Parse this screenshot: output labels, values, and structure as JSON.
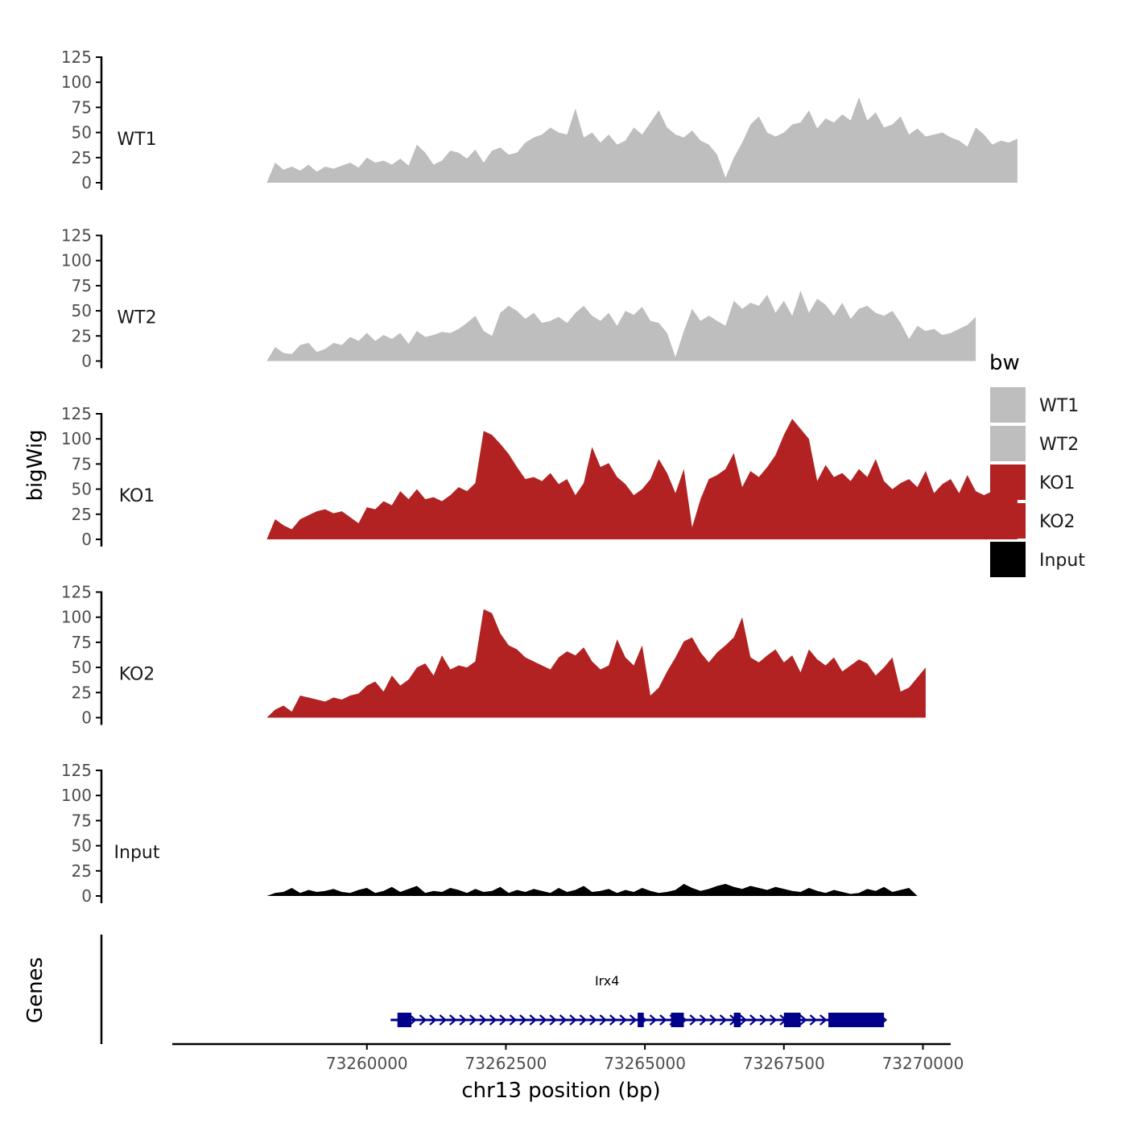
{
  "chart_data": {
    "type": "area",
    "xlabel": "chr13 position (bp)",
    "ylabel": "bigWig",
    "genes_label": "Genes",
    "legend": {
      "title": "bw",
      "position": "right",
      "entries": [
        {
          "name": "WT1",
          "color": "#BEBEBE"
        },
        {
          "name": "WT2",
          "color": "#BEBEBE"
        },
        {
          "name": "KO1",
          "color": "#B22222"
        },
        {
          "name": "KO2",
          "color": "#B22222"
        },
        {
          "name": "Input",
          "color": "#000000"
        }
      ]
    },
    "x_range": [
      73256500,
      73270500
    ],
    "x_ticks": [
      73260000,
      73262500,
      73265000,
      73267500,
      73270000
    ],
    "x_tick_labels": [
      "73260000",
      "73262500",
      "73265000",
      "73267500",
      "73270000"
    ],
    "ylim": [
      0,
      125
    ],
    "y_ticks": [
      0,
      25,
      50,
      75,
      100,
      125
    ],
    "y_tick_labels": [
      "0",
      "25",
      "50",
      "75",
      "100",
      "125"
    ],
    "x_start": 73258200,
    "x_step": 150,
    "tracks": [
      {
        "name": "WT1",
        "color": "#BEBEBE",
        "values": [
          0,
          20,
          13,
          16,
          12,
          18,
          11,
          16,
          14,
          17,
          20,
          15,
          25,
          20,
          22,
          18,
          24,
          17,
          38,
          30,
          18,
          22,
          32,
          30,
          24,
          33,
          20,
          32,
          35,
          28,
          30,
          40,
          45,
          48,
          55,
          50,
          48,
          74,
          45,
          50,
          40,
          48,
          38,
          42,
          55,
          48,
          60,
          72,
          55,
          48,
          45,
          52,
          42,
          38,
          28,
          5,
          25,
          40,
          58,
          66,
          50,
          46,
          50,
          58,
          60,
          72,
          54,
          64,
          60,
          68,
          62,
          85,
          62,
          70,
          55,
          58,
          66,
          48,
          54,
          46,
          48,
          50,
          45,
          42,
          36,
          55,
          48,
          38,
          42,
          40,
          44
        ]
      },
      {
        "name": "WT2",
        "color": "#BEBEBE",
        "values": [
          0,
          14,
          8,
          7,
          16,
          18,
          9,
          12,
          18,
          16,
          24,
          20,
          28,
          20,
          26,
          22,
          28,
          17,
          30,
          24,
          26,
          29,
          28,
          32,
          38,
          45,
          30,
          25,
          48,
          55,
          50,
          42,
          48,
          38,
          40,
          44,
          38,
          48,
          55,
          45,
          40,
          48,
          35,
          50,
          46,
          54,
          40,
          38,
          28,
          4,
          30,
          52,
          40,
          45,
          40,
          35,
          60,
          52,
          58,
          55,
          66,
          48,
          60,
          45,
          70,
          48,
          62,
          56,
          45,
          58,
          42,
          52,
          55,
          48,
          45,
          50,
          38,
          22,
          35,
          30,
          32,
          26,
          28,
          32,
          36,
          44
        ]
      },
      {
        "name": "KO1",
        "color": "#B22222",
        "values": [
          0,
          20,
          14,
          10,
          20,
          24,
          28,
          30,
          26,
          28,
          22,
          16,
          32,
          30,
          38,
          34,
          48,
          40,
          50,
          40,
          42,
          38,
          44,
          52,
          48,
          56,
          108,
          104,
          95,
          85,
          72,
          60,
          62,
          58,
          66,
          55,
          60,
          44,
          56,
          92,
          72,
          76,
          62,
          55,
          44,
          50,
          60,
          80,
          66,
          46,
          70,
          12,
          40,
          60,
          64,
          70,
          86,
          52,
          68,
          62,
          72,
          84,
          104,
          120,
          110,
          100,
          58,
          74,
          62,
          66,
          58,
          70,
          62,
          80,
          58,
          50,
          56,
          60,
          52,
          68,
          46,
          55,
          60,
          46,
          64,
          48,
          44,
          48,
          50,
          52,
          56
        ]
      },
      {
        "name": "KO2",
        "color": "#B22222",
        "values": [
          0,
          8,
          12,
          6,
          22,
          20,
          18,
          16,
          20,
          18,
          22,
          24,
          32,
          36,
          26,
          42,
          32,
          38,
          50,
          54,
          42,
          62,
          48,
          52,
          50,
          56,
          108,
          104,
          84,
          72,
          68,
          60,
          56,
          52,
          48,
          60,
          66,
          62,
          70,
          56,
          48,
          52,
          78,
          60,
          52,
          72,
          22,
          30,
          46,
          60,
          76,
          80,
          65,
          55,
          65,
          72,
          80,
          100,
          60,
          55,
          62,
          68,
          55,
          62,
          45,
          68,
          58,
          52,
          60,
          46,
          52,
          58,
          54,
          42,
          50,
          60,
          26,
          30,
          40,
          50
        ]
      },
      {
        "name": "Input",
        "color": "#000000",
        "values": [
          0,
          3,
          4,
          8,
          3,
          6,
          4,
          5,
          7,
          4,
          3,
          6,
          8,
          3,
          5,
          9,
          4,
          7,
          10,
          3,
          5,
          4,
          8,
          6,
          3,
          7,
          4,
          5,
          9,
          3,
          6,
          4,
          7,
          5,
          3,
          8,
          4,
          6,
          10,
          4,
          5,
          7,
          3,
          6,
          4,
          8,
          5,
          3,
          4,
          6,
          12,
          8,
          5,
          7,
          10,
          12,
          9,
          7,
          10,
          8,
          6,
          9,
          7,
          5,
          4,
          8,
          5,
          3,
          6,
          4,
          2,
          3,
          7,
          5,
          9,
          4,
          6,
          8,
          0
        ]
      }
    ],
    "gene": {
      "name": "Irx4",
      "color": "#00008B",
      "strand": "+",
      "start": 73260500,
      "end": 73269300,
      "exons": [
        [
          73260550,
          73260800
        ],
        [
          73264870,
          73264980
        ],
        [
          73265470,
          73265700
        ],
        [
          73266600,
          73266720
        ],
        [
          73267500,
          73267800
        ],
        [
          73268300,
          73269300
        ]
      ]
    }
  }
}
